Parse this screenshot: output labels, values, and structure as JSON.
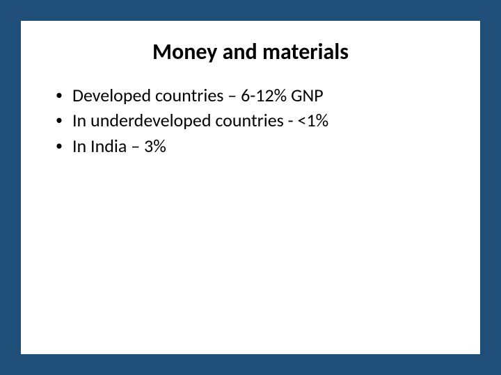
{
  "slide": {
    "background_color": "#1f4e79",
    "content_background_color": "#ffffff",
    "title": {
      "text": "Money and materials",
      "font_size": 32,
      "font_weight": "bold",
      "color": "#000000",
      "align": "center"
    },
    "bullets": {
      "font_size": 26,
      "color": "#000000",
      "marker": "•",
      "items": [
        "Developed countries – 6-12% GNP",
        "In underdeveloped countries - <1%",
        "In India – 3%"
      ]
    }
  }
}
